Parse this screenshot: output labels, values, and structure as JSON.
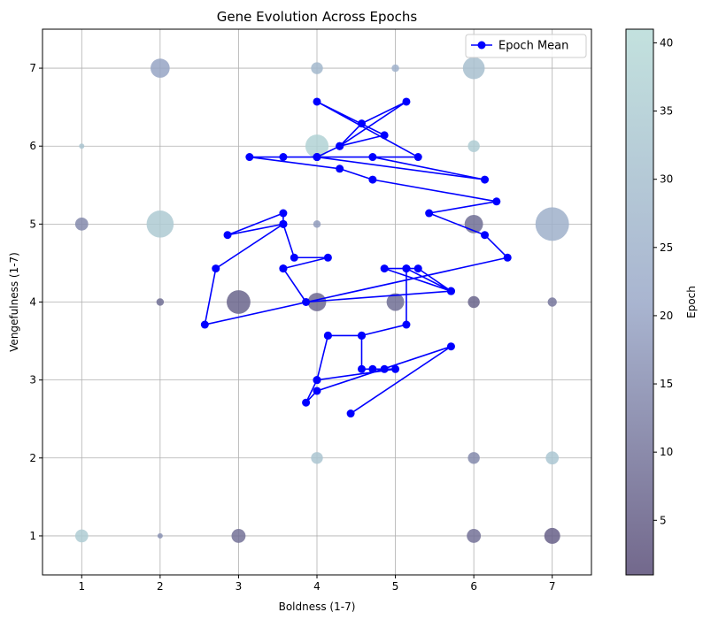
{
  "chart_data": {
    "type": "scatter",
    "title": "Gene Evolution Across Epochs",
    "xlabel": "Boldness (1-7)",
    "ylabel": "Vengefulness (1-7)",
    "xlim": [
      0.5,
      7.5
    ],
    "ylim": [
      0.5,
      7.5
    ],
    "xticks": [
      1,
      2,
      3,
      4,
      5,
      6,
      7
    ],
    "yticks": [
      1,
      2,
      3,
      4,
      5,
      6,
      7
    ],
    "grid": true,
    "legend": {
      "position": "top-right",
      "entries": [
        "Epoch Mean"
      ]
    },
    "colorbar": {
      "label": "Epoch",
      "range": [
        1,
        41
      ],
      "ticks": [
        5,
        10,
        15,
        20,
        25,
        30,
        35,
        40
      ],
      "colors": [
        "#5a4e78",
        "#9aa8c8",
        "#b8dcd8"
      ]
    },
    "line_color": "#0000ff",
    "bubbles": [
      {
        "x": 2,
        "y": 7,
        "count": 13,
        "epoch": 20
      },
      {
        "x": 4,
        "y": 7,
        "count": 5,
        "epoch": 27
      },
      {
        "x": 5,
        "y": 7,
        "count": 2,
        "epoch": 25
      },
      {
        "x": 6,
        "y": 7,
        "count": 17,
        "epoch": 30
      },
      {
        "x": 1,
        "y": 6,
        "count": 1,
        "epoch": 32
      },
      {
        "x": 4,
        "y": 6,
        "count": 19,
        "epoch": 37
      },
      {
        "x": 6,
        "y": 6,
        "count": 5,
        "epoch": 35
      },
      {
        "x": 1,
        "y": 5,
        "count": 6,
        "epoch": 14
      },
      {
        "x": 2,
        "y": 5,
        "count": 26,
        "epoch": 34
      },
      {
        "x": 4,
        "y": 5,
        "count": 2,
        "epoch": 18
      },
      {
        "x": 6,
        "y": 5,
        "count": 12,
        "epoch": 8
      },
      {
        "x": 7,
        "y": 5,
        "count": 40,
        "epoch": 24
      },
      {
        "x": 2,
        "y": 4,
        "count": 2,
        "epoch": 8
      },
      {
        "x": 3,
        "y": 4,
        "count": 20,
        "epoch": 6
      },
      {
        "x": 4,
        "y": 4,
        "count": 12,
        "epoch": 7
      },
      {
        "x": 5,
        "y": 4,
        "count": 11,
        "epoch": 8
      },
      {
        "x": 6,
        "y": 4,
        "count": 5,
        "epoch": 6
      },
      {
        "x": 7,
        "y": 4,
        "count": 3,
        "epoch": 10
      },
      {
        "x": 4,
        "y": 3,
        "count": 1,
        "epoch": 36
      },
      {
        "x": 4,
        "y": 2,
        "count": 5,
        "epoch": 32
      },
      {
        "x": 6,
        "y": 2,
        "count": 5,
        "epoch": 14
      },
      {
        "x": 7,
        "y": 2,
        "count": 6,
        "epoch": 33
      },
      {
        "x": 1,
        "y": 1,
        "count": 6,
        "epoch": 35
      },
      {
        "x": 2,
        "y": 1,
        "count": 1,
        "epoch": 16
      },
      {
        "x": 3,
        "y": 1,
        "count": 7,
        "epoch": 9
      },
      {
        "x": 6,
        "y": 1,
        "count": 7,
        "epoch": 9
      },
      {
        "x": 7,
        "y": 1,
        "count": 9,
        "epoch": 5
      }
    ],
    "series": [
      {
        "name": "Epoch Mean",
        "x": [
          4.43,
          5.71,
          4.0,
          3.86,
          4.0,
          4.14,
          4.57,
          4.57,
          4.71,
          4.86,
          5.0,
          4.0,
          4.14,
          4.57,
          5.14,
          5.14,
          5.71,
          4.86,
          5.14,
          5.29,
          5.71,
          3.86,
          3.57,
          3.57,
          4.14,
          3.71,
          3.57,
          3.57,
          2.86,
          3.57,
          2.71,
          2.57,
          6.43,
          6.14,
          5.43,
          6.29,
          4.71,
          4.29,
          3.14,
          3.57,
          4.0,
          4.71,
          6.14,
          4.0,
          4.29,
          4.57,
          5.14,
          4.29,
          4.86,
          4.0,
          5.29,
          4.0
        ],
        "y": [
          2.57,
          3.43,
          2.86,
          2.71,
          3.0,
          3.57,
          3.57,
          3.14,
          3.14,
          3.14,
          3.14,
          3.0,
          3.57,
          3.57,
          3.71,
          4.43,
          4.14,
          4.43,
          4.43,
          4.43,
          4.14,
          4.0,
          4.43,
          4.43,
          4.57,
          4.57,
          5.0,
          5.14,
          4.86,
          5.0,
          4.43,
          3.71,
          4.57,
          4.86,
          5.14,
          5.29,
          5.57,
          5.71,
          5.86,
          5.86,
          5.86,
          5.86,
          5.57,
          5.86,
          6.0,
          6.29,
          6.57,
          6.0,
          6.14,
          6.57,
          5.86,
          5.86
        ]
      }
    ]
  }
}
